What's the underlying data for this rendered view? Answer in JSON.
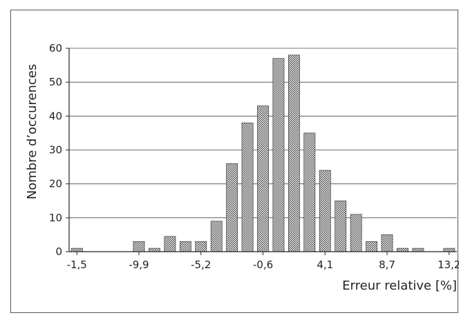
{
  "chart_data": {
    "type": "bar",
    "categories": [
      "-1,5",
      "",
      "",
      "",
      "-9,9",
      "",
      "",
      "",
      "-5,2",
      "",
      "",
      "",
      "-0,6",
      "",
      "",
      "",
      "4,1",
      "",
      "",
      "",
      "8,7",
      "",
      "",
      "",
      "13,2"
    ],
    "x_tick_labels": [
      "-1,5",
      "-9,9",
      "-5,2",
      "-0,6",
      "4,1",
      "8,7",
      "13,2"
    ],
    "values": [
      1,
      0,
      0,
      0,
      3,
      1,
      4.5,
      3,
      3,
      9,
      26,
      38,
      43,
      57,
      58,
      35,
      24,
      15,
      11,
      3,
      5,
      1,
      1,
      0,
      1
    ],
    "title": "",
    "xlabel": "Erreur relative [%]",
    "ylabel": "Nombre d’occurences",
    "ylim": [
      0,
      60
    ],
    "yticks": [
      0,
      10,
      20,
      30,
      40,
      50,
      60
    ],
    "grid": true,
    "bar_fill": "crosshatch",
    "colors": {
      "bar_stroke": "#222222",
      "bar_pattern_dark": "#555555",
      "bar_pattern_light": "#ffffff",
      "grid": "#444444",
      "axis": "#222222"
    }
  }
}
